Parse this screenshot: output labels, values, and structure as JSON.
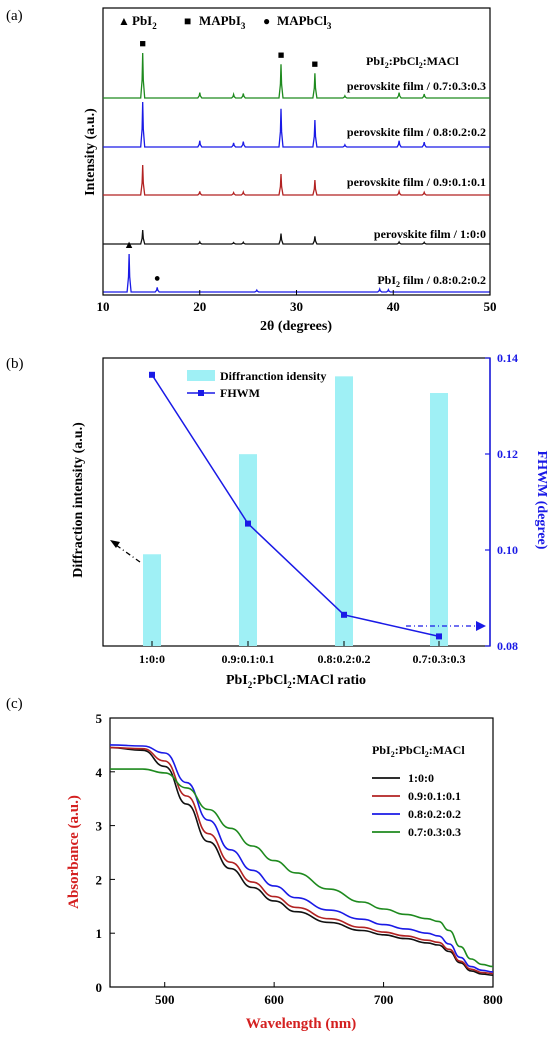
{
  "panels": {
    "a": "(a)",
    "b": "(b)",
    "c": "(c)"
  },
  "chart_data": [
    {
      "type": "line",
      "panel": "(a)",
      "xlabel": "2θ (degrees)",
      "ylabel": "Intensity (a.u.)",
      "xlim": [
        10,
        50
      ],
      "x_ticks": [
        "10",
        "20",
        "30",
        "40",
        "50"
      ],
      "legend_top": [
        {
          "symbol": "▲",
          "label": "PbI",
          "sub": "2"
        },
        {
          "symbol": "■",
          "label": "MAPbI",
          "sub": "3"
        },
        {
          "symbol": "●",
          "label": "MAPbCl",
          "sub": "3"
        }
      ],
      "ratio_header": {
        "p1": "PbI",
        "s1": "2",
        "p2": ":PbCl",
        "s2": "2",
        "p3": ":MACl"
      },
      "series": [
        {
          "name": "perovskite film / 0.7:0.3:0.3",
          "color": "#1e8a1e",
          "peaks": [
            [
              14.1,
              1.0
            ],
            [
              20.0,
              0.12
            ],
            [
              23.5,
              0.08
            ],
            [
              24.5,
              0.1
            ],
            [
              28.4,
              0.75
            ],
            [
              31.9,
              0.55
            ],
            [
              35.0,
              0.05
            ],
            [
              40.6,
              0.12
            ],
            [
              43.2,
              0.09
            ]
          ]
        },
        {
          "name": "perovskite film / 0.8:0.2:0.2",
          "color": "#1a1ae6",
          "peaks": [
            [
              14.1,
              1.0
            ],
            [
              20.0,
              0.14
            ],
            [
              23.5,
              0.09
            ],
            [
              24.5,
              0.12
            ],
            [
              28.4,
              0.85
            ],
            [
              31.9,
              0.6
            ],
            [
              35.0,
              0.05
            ],
            [
              40.6,
              0.14
            ],
            [
              43.2,
              0.11
            ]
          ]
        },
        {
          "name": "perovskite film / 0.9:0.1:0.1",
          "color": "#b22222",
          "peaks": [
            [
              14.1,
              1.0
            ],
            [
              20.0,
              0.12
            ],
            [
              23.5,
              0.08
            ],
            [
              24.5,
              0.1
            ],
            [
              28.4,
              0.7
            ],
            [
              31.9,
              0.5
            ],
            [
              40.6,
              0.12
            ],
            [
              43.2,
              0.09
            ]
          ]
        },
        {
          "name": "perovskite film / 1:0:0",
          "color": "#111111",
          "peaks": [
            [
              14.1,
              1.0
            ],
            [
              20.0,
              0.15
            ],
            [
              23.5,
              0.1
            ],
            [
              24.5,
              0.13
            ],
            [
              28.4,
              0.75
            ],
            [
              31.9,
              0.55
            ],
            [
              40.6,
              0.15
            ],
            [
              43.2,
              0.12
            ]
          ]
        },
        {
          "name_prefix": "PbI",
          "name_sub": "2",
          "name": " film / 0.8:0.2:0.2",
          "color": "#1a1ae6",
          "peaks": [
            [
              12.7,
              1.0
            ],
            [
              15.6,
              0.12
            ],
            [
              25.9,
              0.05
            ],
            [
              38.6,
              0.08
            ],
            [
              39.5,
              0.06
            ]
          ]
        }
      ],
      "markers": [
        {
          "symbol": "■",
          "x": 14.1,
          "series": 0
        },
        {
          "symbol": "■",
          "x": 28.4,
          "series": 0
        },
        {
          "symbol": "■",
          "x": 31.9,
          "series": 0
        },
        {
          "symbol": "▲",
          "x": 12.7,
          "series": 4
        },
        {
          "symbol": "●",
          "x": 15.6,
          "series": 4
        }
      ]
    },
    {
      "type": "bar",
      "panel": "(b)",
      "categories": [
        "1:0:0",
        "0.9:0.1:0.1",
        "0.8:0.2:0.2",
        "0.7:0.3:0.3"
      ],
      "xlabel": {
        "p1": "PbI",
        "s1": "2",
        "p2": ":PbCl",
        "s2": "2",
        "p3": ":MACl ratio"
      },
      "ylabel": "Diffraction intensity (a.u.)",
      "y2label": "FHWM (degree)",
      "bar_color": "#9ff0f5",
      "line_color": "#1a1ae6",
      "bar_series": {
        "name": "Diffranction idensity",
        "values": [
          0.33,
          0.69,
          0.97,
          0.91
        ]
      },
      "line_series": {
        "name": "FHWM",
        "values": [
          0.1365,
          0.1055,
          0.0865,
          0.082
        ]
      },
      "y2lim": [
        0.08,
        0.14
      ],
      "y2_ticks": [
        "0.08",
        "0.10",
        "0.12",
        "0.14"
      ]
    },
    {
      "type": "line",
      "panel": "(c)",
      "xlabel": "Wavelength (nm)",
      "ylabel": "Absorbance (a.u.)",
      "label_color": "#d42020",
      "xlim": [
        450,
        800
      ],
      "ylim": [
        0,
        5
      ],
      "x_ticks": [
        "500",
        "600",
        "700",
        "800"
      ],
      "y_ticks": [
        "0",
        "1",
        "2",
        "3",
        "4",
        "5"
      ],
      "legend_title": {
        "p1": "PbI",
        "s1": "2",
        "p2": ":PbCl",
        "s2": "2",
        "p3": ":MACl"
      },
      "series": [
        {
          "name": "1:0:0",
          "color": "#111111",
          "x": [
            450,
            480,
            500,
            520,
            540,
            560,
            580,
            600,
            620,
            650,
            680,
            700,
            720,
            740,
            750,
            760,
            770,
            780,
            790,
            800
          ],
          "y": [
            4.45,
            4.4,
            4.1,
            3.4,
            2.7,
            2.2,
            1.85,
            1.6,
            1.4,
            1.2,
            1.05,
            0.97,
            0.9,
            0.82,
            0.78,
            0.66,
            0.45,
            0.3,
            0.24,
            0.22
          ]
        },
        {
          "name": "0.9:0.1:0.1",
          "color": "#b22222",
          "x": [
            450,
            480,
            500,
            520,
            540,
            560,
            580,
            600,
            620,
            650,
            680,
            700,
            720,
            740,
            750,
            760,
            770,
            780,
            790,
            800
          ],
          "y": [
            4.45,
            4.43,
            4.2,
            3.55,
            2.85,
            2.32,
            1.95,
            1.68,
            1.48,
            1.27,
            1.11,
            1.02,
            0.95,
            0.87,
            0.83,
            0.7,
            0.48,
            0.33,
            0.27,
            0.25
          ]
        },
        {
          "name": "0.8:0.2:0.2",
          "color": "#1a1ae6",
          "x": [
            450,
            480,
            500,
            520,
            540,
            560,
            580,
            600,
            620,
            650,
            680,
            700,
            720,
            740,
            750,
            760,
            770,
            780,
            790,
            800
          ],
          "y": [
            4.5,
            4.48,
            4.35,
            3.8,
            3.1,
            2.55,
            2.17,
            1.88,
            1.66,
            1.43,
            1.26,
            1.16,
            1.08,
            1.0,
            0.95,
            0.8,
            0.55,
            0.38,
            0.31,
            0.28
          ]
        },
        {
          "name": "0.7:0.3:0.3",
          "color": "#1e8a1e",
          "x": [
            450,
            480,
            500,
            520,
            540,
            560,
            580,
            600,
            620,
            650,
            680,
            700,
            720,
            740,
            750,
            760,
            770,
            780,
            790,
            800
          ],
          "y": [
            4.05,
            4.05,
            3.98,
            3.7,
            3.3,
            2.95,
            2.62,
            2.35,
            2.12,
            1.82,
            1.58,
            1.45,
            1.35,
            1.27,
            1.22,
            1.05,
            0.75,
            0.52,
            0.42,
            0.38
          ]
        }
      ]
    }
  ]
}
